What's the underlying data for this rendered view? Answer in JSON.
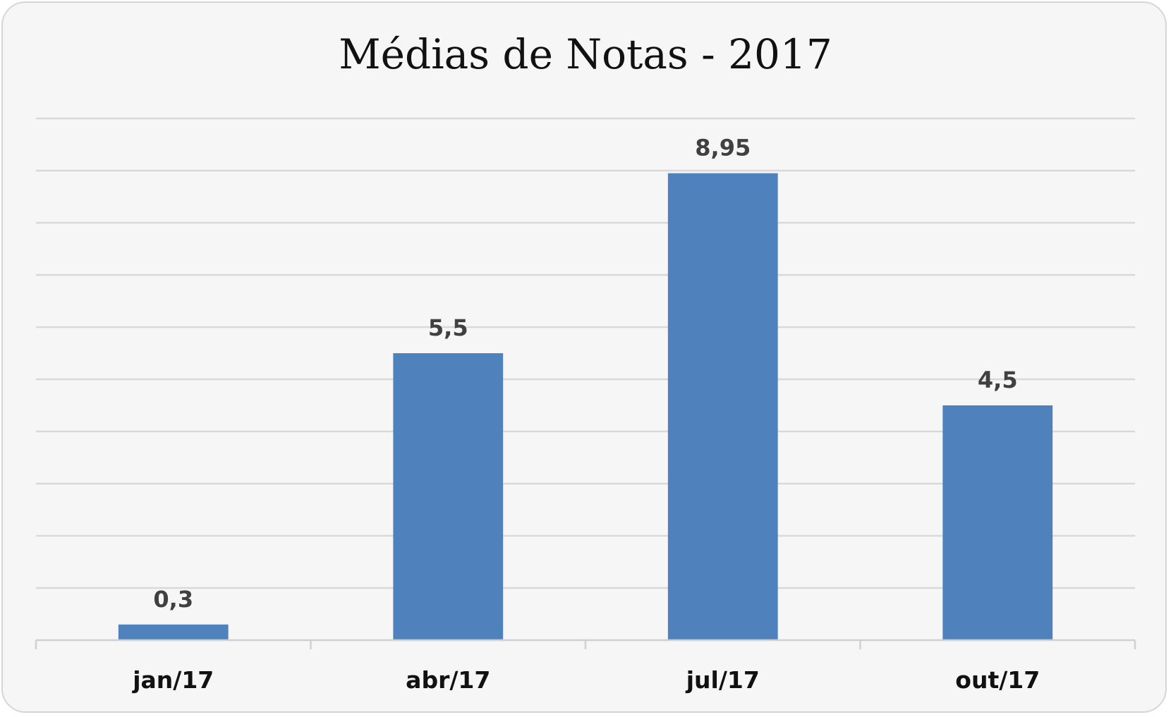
{
  "chart_data": {
    "type": "bar",
    "title": "Médias de Notas - 2017",
    "categories": [
      "jan/17",
      "abr/17",
      "jul/17",
      "out/17"
    ],
    "values": [
      0.3,
      5.5,
      8.95,
      4.5
    ],
    "data_labels": [
      "0,3",
      "5,5",
      "8,95",
      "4,5"
    ],
    "xlabel": "",
    "ylabel": "",
    "ylim": [
      0,
      10
    ],
    "y_grid_step": 1,
    "y_tick_labels_shown": false,
    "grid": true,
    "legend": "none",
    "colors": {
      "bar": "#4f81bd",
      "grid": "#d9d9d9",
      "axis": "#d0d0d0",
      "background": "#f6f6f6",
      "data_label": "#404040"
    }
  }
}
